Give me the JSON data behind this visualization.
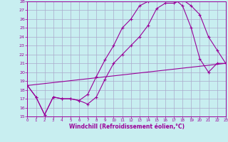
{
  "bg_color": "#c8eef0",
  "grid_color": "#aaaacc",
  "line_color": "#990099",
  "xlabel": "Windchill (Refroidissement éolien,°C)",
  "xlabel_color": "#990099",
  "tick_color": "#990099",
  "xlim": [
    0,
    23
  ],
  "ylim": [
    15,
    28
  ],
  "yticks": [
    15,
    16,
    17,
    18,
    19,
    20,
    21,
    22,
    23,
    24,
    25,
    26,
    27,
    28
  ],
  "xticks": [
    0,
    1,
    2,
    3,
    4,
    5,
    6,
    7,
    8,
    9,
    10,
    11,
    12,
    13,
    14,
    15,
    16,
    17,
    18,
    19,
    20,
    21,
    22,
    23
  ],
  "curve1_x": [
    0,
    1,
    2,
    3,
    4,
    5,
    6,
    7,
    8,
    9,
    10,
    11,
    12,
    13,
    14,
    15,
    16,
    17,
    18,
    19,
    20,
    21,
    22,
    23
  ],
  "curve1_y": [
    18.5,
    17.2,
    15.2,
    17.2,
    17.0,
    17.0,
    16.8,
    16.4,
    17.2,
    19.2,
    21.0,
    22.0,
    23.0,
    24.0,
    25.3,
    27.2,
    27.8,
    27.8,
    28.2,
    27.5,
    26.5,
    24.0,
    22.5,
    21.0
  ],
  "curve2_x": [
    0,
    1,
    2,
    3,
    4,
    5,
    6,
    7,
    8,
    9,
    10,
    11,
    12,
    13,
    14,
    15,
    16,
    17,
    18,
    19,
    20,
    21,
    22,
    23
  ],
  "curve2_y": [
    18.5,
    17.2,
    15.2,
    17.2,
    17.0,
    17.0,
    16.8,
    17.5,
    19.5,
    21.4,
    23.0,
    25.0,
    26.0,
    27.5,
    28.0,
    28.3,
    28.2,
    28.3,
    27.5,
    25.0,
    21.5,
    20.0,
    21.0,
    21.0
  ],
  "curve3_x": [
    0,
    23
  ],
  "curve3_y": [
    18.5,
    21.0
  ]
}
